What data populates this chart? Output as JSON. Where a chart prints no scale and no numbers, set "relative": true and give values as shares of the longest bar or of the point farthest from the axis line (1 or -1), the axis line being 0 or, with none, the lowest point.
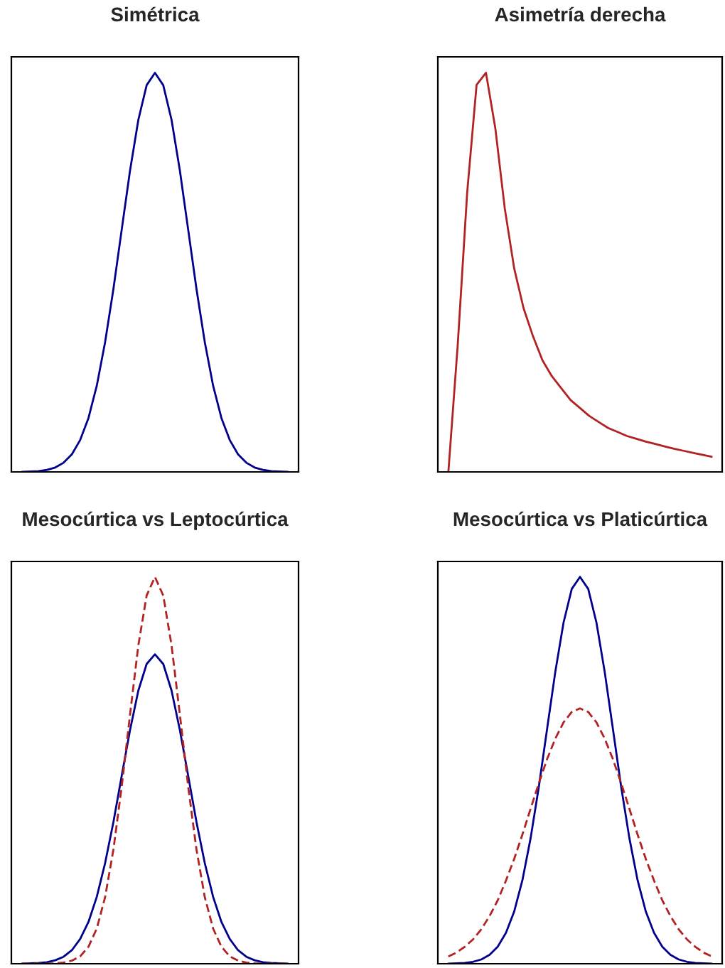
{
  "chart_data": [
    {
      "type": "line",
      "title": "Simétrica",
      "relative": true,
      "categories": [
        null,
        null,
        null,
        null,
        null,
        null,
        null,
        null,
        null,
        null,
        null,
        null,
        null,
        null,
        null,
        null,
        null,
        null,
        null,
        null,
        null,
        null,
        null,
        null,
        null,
        null,
        null,
        null,
        null,
        null,
        null,
        null,
        null
      ],
      "series": [
        {
          "color": "#00008b",
          "line_style": "solid",
          "values": [
            0,
            0.001,
            0.002,
            0.005,
            0.011,
            0.023,
            0.044,
            0.08,
            0.135,
            0.216,
            0.325,
            0.458,
            0.607,
            0.755,
            0.882,
            0.969,
            1,
            0.969,
            0.882,
            0.755,
            0.607,
            0.458,
            0.325,
            0.216,
            0.135,
            0.08,
            0.044,
            0.023,
            0.011,
            0.005,
            0.002,
            0.001,
            0
          ]
        }
      ]
    },
    {
      "type": "line",
      "title": "Asimetría derecha",
      "relative": true,
      "categories": [
        null,
        null,
        null,
        null,
        null,
        null,
        null,
        null,
        null,
        null,
        null,
        null,
        null,
        null,
        null,
        null,
        null,
        null,
        null,
        null,
        null,
        null,
        null,
        null,
        null,
        null,
        null,
        null,
        null
      ],
      "series": [
        {
          "color": "#b22222",
          "line_style": "solid",
          "values": [
            0,
            0.32,
            0.7,
            0.97,
            1,
            0.86,
            0.66,
            0.51,
            0.41,
            0.34,
            0.28,
            0.24,
            0.21,
            0.18,
            0.16,
            0.14,
            0.125,
            0.11,
            0.1,
            0.09,
            0.083,
            0.076,
            0.07,
            0.064,
            0.058,
            0.053,
            0.048,
            0.043,
            0.038
          ]
        }
      ]
    },
    {
      "type": "line",
      "title": "Mesocúrtica vs Leptocúrtica",
      "relative": true,
      "categories": [
        null,
        null,
        null,
        null,
        null,
        null,
        null,
        null,
        null,
        null,
        null,
        null,
        null,
        null,
        null,
        null,
        null,
        null,
        null,
        null,
        null,
        null,
        null,
        null,
        null,
        null,
        null,
        null,
        null,
        null,
        null,
        null,
        null
      ],
      "series": [
        {
          "color": "#00008b",
          "line_style": "solid",
          "values": [
            0,
            0.001,
            0.002,
            0.004,
            0.009,
            0.018,
            0.035,
            0.064,
            0.108,
            0.173,
            0.26,
            0.366,
            0.486,
            0.604,
            0.706,
            0.775,
            0.8,
            0.775,
            0.706,
            0.604,
            0.486,
            0.366,
            0.26,
            0.173,
            0.108,
            0.064,
            0.035,
            0.018,
            0.009,
            0.004,
            0.002,
            0.001,
            0
          ]
        },
        {
          "color": "#b22222",
          "line_style": "dashed",
          "values": [
            0,
            0,
            0,
            0,
            0.001,
            0.003,
            0.008,
            0.019,
            0.044,
            0.091,
            0.172,
            0.295,
            0.458,
            0.644,
            0.823,
            0.952,
            1,
            0.952,
            0.823,
            0.644,
            0.458,
            0.295,
            0.172,
            0.091,
            0.044,
            0.019,
            0.008,
            0.003,
            0.001,
            0,
            0,
            0,
            0
          ]
        }
      ]
    },
    {
      "type": "line",
      "title": "Mesocúrtica vs Platicúrtica",
      "relative": true,
      "categories": [
        null,
        null,
        null,
        null,
        null,
        null,
        null,
        null,
        null,
        null,
        null,
        null,
        null,
        null,
        null,
        null,
        null,
        null,
        null,
        null,
        null,
        null,
        null,
        null,
        null,
        null,
        null,
        null,
        null,
        null,
        null,
        null,
        null
      ],
      "series": [
        {
          "color": "#00008b",
          "line_style": "solid",
          "values": [
            0,
            0.001,
            0.002,
            0.005,
            0.011,
            0.023,
            0.044,
            0.08,
            0.135,
            0.216,
            0.325,
            0.458,
            0.607,
            0.755,
            0.882,
            0.969,
            1,
            0.969,
            0.882,
            0.755,
            0.607,
            0.458,
            0.325,
            0.216,
            0.135,
            0.08,
            0.044,
            0.023,
            0.011,
            0.005,
            0.002,
            0.001,
            0
          ]
        },
        {
          "color": "#b22222",
          "line_style": "dashed",
          "values": [
            0.019,
            0.029,
            0.044,
            0.063,
            0.089,
            0.123,
            0.164,
            0.215,
            0.271,
            0.334,
            0.401,
            0.467,
            0.529,
            0.582,
            0.624,
            0.651,
            0.66,
            0.651,
            0.624,
            0.582,
            0.529,
            0.467,
            0.401,
            0.334,
            0.271,
            0.215,
            0.164,
            0.123,
            0.089,
            0.063,
            0.044,
            0.029,
            0.019
          ]
        }
      ]
    }
  ]
}
